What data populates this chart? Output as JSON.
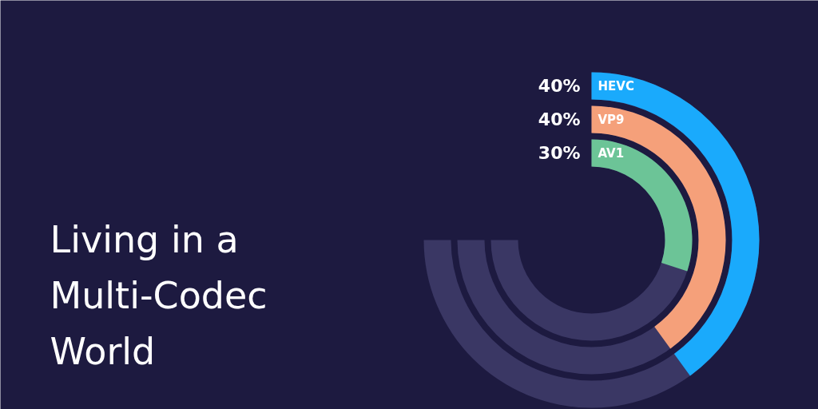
{
  "chart_data": {
    "type": "other",
    "title": "Living in a\nMulti-Codec\nWorld",
    "categories": [
      "HEVC",
      "VP9",
      "AV1"
    ],
    "values": [
      40,
      40,
      30
    ],
    "value_labels": [
      "40%",
      "40%",
      "30%"
    ],
    "colors": [
      "#1aaafc",
      "#f5a07a",
      "#6cc497"
    ]
  }
}
